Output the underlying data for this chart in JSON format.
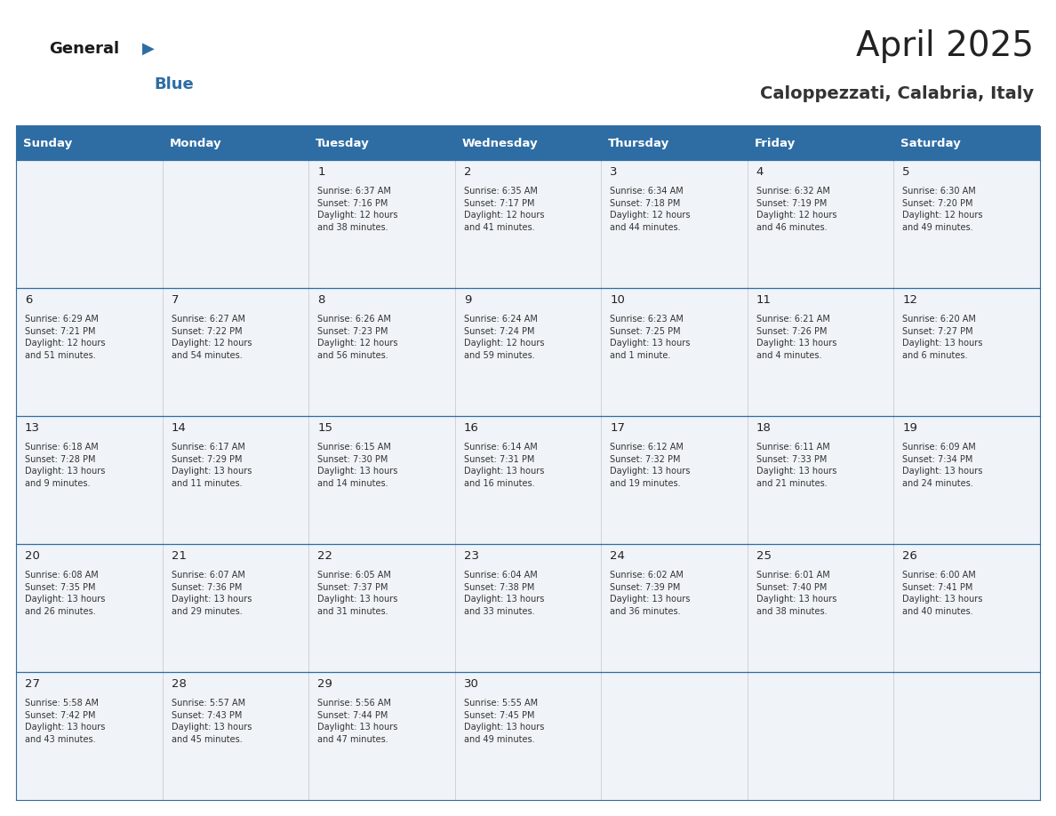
{
  "title": "April 2025",
  "subtitle": "Caloppezzati, Calabria, Italy",
  "header_bg": "#2E6DA4",
  "header_text_color": "#FFFFFF",
  "cell_bg": "#F0F4F8",
  "day_number_color": "#222222",
  "text_color": "#333333",
  "border_color": "#2E6DA4",
  "days_of_week": [
    "Sunday",
    "Monday",
    "Tuesday",
    "Wednesday",
    "Thursday",
    "Friday",
    "Saturday"
  ],
  "weeks": [
    [
      {
        "day": null,
        "info": null
      },
      {
        "day": null,
        "info": null
      },
      {
        "day": 1,
        "info": "Sunrise: 6:37 AM\nSunset: 7:16 PM\nDaylight: 12 hours\nand 38 minutes."
      },
      {
        "day": 2,
        "info": "Sunrise: 6:35 AM\nSunset: 7:17 PM\nDaylight: 12 hours\nand 41 minutes."
      },
      {
        "day": 3,
        "info": "Sunrise: 6:34 AM\nSunset: 7:18 PM\nDaylight: 12 hours\nand 44 minutes."
      },
      {
        "day": 4,
        "info": "Sunrise: 6:32 AM\nSunset: 7:19 PM\nDaylight: 12 hours\nand 46 minutes."
      },
      {
        "day": 5,
        "info": "Sunrise: 6:30 AM\nSunset: 7:20 PM\nDaylight: 12 hours\nand 49 minutes."
      }
    ],
    [
      {
        "day": 6,
        "info": "Sunrise: 6:29 AM\nSunset: 7:21 PM\nDaylight: 12 hours\nand 51 minutes."
      },
      {
        "day": 7,
        "info": "Sunrise: 6:27 AM\nSunset: 7:22 PM\nDaylight: 12 hours\nand 54 minutes."
      },
      {
        "day": 8,
        "info": "Sunrise: 6:26 AM\nSunset: 7:23 PM\nDaylight: 12 hours\nand 56 minutes."
      },
      {
        "day": 9,
        "info": "Sunrise: 6:24 AM\nSunset: 7:24 PM\nDaylight: 12 hours\nand 59 minutes."
      },
      {
        "day": 10,
        "info": "Sunrise: 6:23 AM\nSunset: 7:25 PM\nDaylight: 13 hours\nand 1 minute."
      },
      {
        "day": 11,
        "info": "Sunrise: 6:21 AM\nSunset: 7:26 PM\nDaylight: 13 hours\nand 4 minutes."
      },
      {
        "day": 12,
        "info": "Sunrise: 6:20 AM\nSunset: 7:27 PM\nDaylight: 13 hours\nand 6 minutes."
      }
    ],
    [
      {
        "day": 13,
        "info": "Sunrise: 6:18 AM\nSunset: 7:28 PM\nDaylight: 13 hours\nand 9 minutes."
      },
      {
        "day": 14,
        "info": "Sunrise: 6:17 AM\nSunset: 7:29 PM\nDaylight: 13 hours\nand 11 minutes."
      },
      {
        "day": 15,
        "info": "Sunrise: 6:15 AM\nSunset: 7:30 PM\nDaylight: 13 hours\nand 14 minutes."
      },
      {
        "day": 16,
        "info": "Sunrise: 6:14 AM\nSunset: 7:31 PM\nDaylight: 13 hours\nand 16 minutes."
      },
      {
        "day": 17,
        "info": "Sunrise: 6:12 AM\nSunset: 7:32 PM\nDaylight: 13 hours\nand 19 minutes."
      },
      {
        "day": 18,
        "info": "Sunrise: 6:11 AM\nSunset: 7:33 PM\nDaylight: 13 hours\nand 21 minutes."
      },
      {
        "day": 19,
        "info": "Sunrise: 6:09 AM\nSunset: 7:34 PM\nDaylight: 13 hours\nand 24 minutes."
      }
    ],
    [
      {
        "day": 20,
        "info": "Sunrise: 6:08 AM\nSunset: 7:35 PM\nDaylight: 13 hours\nand 26 minutes."
      },
      {
        "day": 21,
        "info": "Sunrise: 6:07 AM\nSunset: 7:36 PM\nDaylight: 13 hours\nand 29 minutes."
      },
      {
        "day": 22,
        "info": "Sunrise: 6:05 AM\nSunset: 7:37 PM\nDaylight: 13 hours\nand 31 minutes."
      },
      {
        "day": 23,
        "info": "Sunrise: 6:04 AM\nSunset: 7:38 PM\nDaylight: 13 hours\nand 33 minutes."
      },
      {
        "day": 24,
        "info": "Sunrise: 6:02 AM\nSunset: 7:39 PM\nDaylight: 13 hours\nand 36 minutes."
      },
      {
        "day": 25,
        "info": "Sunrise: 6:01 AM\nSunset: 7:40 PM\nDaylight: 13 hours\nand 38 minutes."
      },
      {
        "day": 26,
        "info": "Sunrise: 6:00 AM\nSunset: 7:41 PM\nDaylight: 13 hours\nand 40 minutes."
      }
    ],
    [
      {
        "day": 27,
        "info": "Sunrise: 5:58 AM\nSunset: 7:42 PM\nDaylight: 13 hours\nand 43 minutes."
      },
      {
        "day": 28,
        "info": "Sunrise: 5:57 AM\nSunset: 7:43 PM\nDaylight: 13 hours\nand 45 minutes."
      },
      {
        "day": 29,
        "info": "Sunrise: 5:56 AM\nSunset: 7:44 PM\nDaylight: 13 hours\nand 47 minutes."
      },
      {
        "day": 30,
        "info": "Sunrise: 5:55 AM\nSunset: 7:45 PM\nDaylight: 13 hours\nand 49 minutes."
      },
      {
        "day": null,
        "info": null
      },
      {
        "day": null,
        "info": null
      },
      {
        "day": null,
        "info": null
      }
    ]
  ]
}
